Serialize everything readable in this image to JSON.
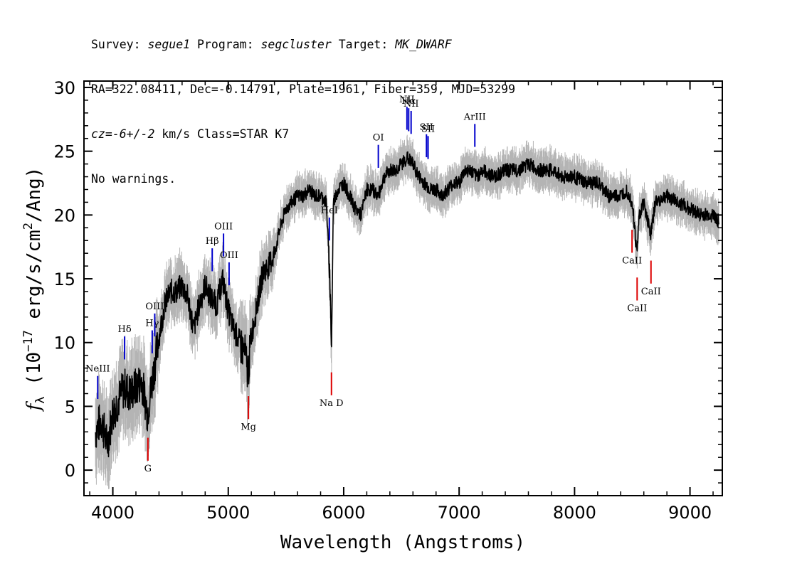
{
  "header": {
    "l1_survey_label": "Survey:",
    "l1_survey_value": "segue1",
    "l1_program_label": "Program:",
    "l1_program_value": "segcluster",
    "l1_target_label": "Target:",
    "l1_target_value": "MK_DWARF",
    "l2": "RA=322.08411, Dec=-0.14791, Plate=1961, Fiber=359, MJD=53299",
    "l3_prefix": "cz=",
    "l3_value": "-6+/-2",
    "l3_suffix": " km/s Class=STAR K7",
    "l4": "No warnings."
  },
  "chart_data": {
    "type": "line",
    "title": "",
    "xlabel": "Wavelength (Angstroms)",
    "ylabel_parts": {
      "sym": "f",
      "sub": "λ",
      "pre": " (10",
      "exp1": "−17",
      "mid": " erg/s/cm",
      "exp2": "2",
      "post": "/Ang)"
    },
    "xlim": [
      3750,
      9280
    ],
    "ylim": [
      -2,
      30.5
    ],
    "xticks": [
      4000,
      5000,
      6000,
      7000,
      8000,
      9000
    ],
    "yticks": [
      0,
      5,
      10,
      15,
      20,
      25,
      30
    ],
    "colors": {
      "spectrum": "#000000",
      "error": "#b4b4b4",
      "emission": "#0000cc",
      "absorption": "#dd0000"
    },
    "series": [
      {
        "x": [
          3850,
          3900,
          3950,
          4000,
          4050,
          4100,
          4150,
          4200,
          4250,
          4300,
          4350,
          4400,
          4450,
          4500,
          4550,
          4600,
          4650,
          4700,
          4750,
          4800,
          4850,
          4900,
          4950,
          5000,
          5050,
          5100,
          5150,
          5170,
          5200,
          5250,
          5300,
          5350,
          5400,
          5450,
          5500,
          5550,
          5600,
          5650,
          5700,
          5750,
          5800,
          5850,
          5880,
          5895,
          5910,
          5950,
          6000,
          6050,
          6100,
          6150,
          6200,
          6250,
          6300,
          6350,
          6400,
          6450,
          6500,
          6550,
          6600,
          6650,
          6700,
          6750,
          6800,
          6850,
          6900,
          6950,
          7000,
          7050,
          7100,
          7150,
          7200,
          7300,
          7400,
          7500,
          7600,
          7700,
          7800,
          7900,
          8000,
          8100,
          8200,
          8300,
          8400,
          8450,
          8500,
          8540,
          8560,
          8600,
          8660,
          8700,
          8800,
          8900,
          9000,
          9100,
          9200,
          9250
        ],
        "y": [
          3.0,
          4.0,
          2.0,
          4.5,
          5.5,
          6.5,
          6.0,
          6.5,
          7.0,
          4.5,
          7.5,
          10.5,
          13.0,
          14.0,
          14.0,
          14.5,
          13.5,
          11.0,
          13.0,
          14.5,
          13.5,
          13.0,
          15.0,
          12.5,
          11.0,
          10.0,
          9.0,
          7.5,
          10.5,
          13.0,
          15.5,
          16.0,
          17.0,
          19.0,
          20.5,
          21.0,
          21.5,
          21.5,
          22.0,
          21.5,
          21.5,
          21.0,
          15.0,
          9.5,
          21.0,
          22.0,
          22.5,
          21.5,
          20.5,
          20.0,
          22.0,
          22.0,
          21.5,
          23.0,
          23.5,
          23.5,
          24.0,
          24.5,
          24.0,
          23.0,
          22.5,
          22.0,
          22.0,
          21.5,
          22.0,
          22.5,
          22.5,
          23.5,
          23.5,
          23.0,
          23.5,
          23.0,
          23.5,
          23.5,
          24.0,
          23.5,
          23.5,
          23.0,
          23.0,
          22.5,
          22.5,
          21.5,
          21.5,
          22.0,
          21.0,
          17.0,
          20.0,
          21.0,
          18.5,
          21.0,
          21.5,
          21.0,
          20.5,
          20.0,
          20.0,
          19.5
        ]
      }
    ],
    "emission_lines": [
      {
        "label": "NeIII",
        "wave": 3869
      },
      {
        "label": "Hδ",
        "wave": 4102
      },
      {
        "label": "Hγ",
        "wave": 4341
      },
      {
        "label": "OIII",
        "wave": 4363
      },
      {
        "label": "Hβ",
        "wave": 4861
      },
      {
        "label": "OIII",
        "wave": 4959
      },
      {
        "label": "OIII",
        "wave": 5007
      },
      {
        "label": "HeI",
        "wave": 5876
      },
      {
        "label": "OI",
        "wave": 6300
      },
      {
        "label": "NII",
        "wave": 6548
      },
      {
        "label": "Hα",
        "wave": 6563
      },
      {
        "label": "NII",
        "wave": 6584
      },
      {
        "label": "SII",
        "wave": 6717
      },
      {
        "label": "SII",
        "wave": 6731
      },
      {
        "label": "ArIII",
        "wave": 7136
      }
    ],
    "absorption_lines": [
      {
        "label": "G",
        "wave": 4304
      },
      {
        "label": "Mg",
        "wave": 5175
      },
      {
        "label": "Na D",
        "wave": 5894
      },
      {
        "label": "CaII",
        "wave": 8498
      },
      {
        "label": "CaII",
        "wave": 8542
      },
      {
        "label": "CaII",
        "wave": 8662
      }
    ]
  }
}
